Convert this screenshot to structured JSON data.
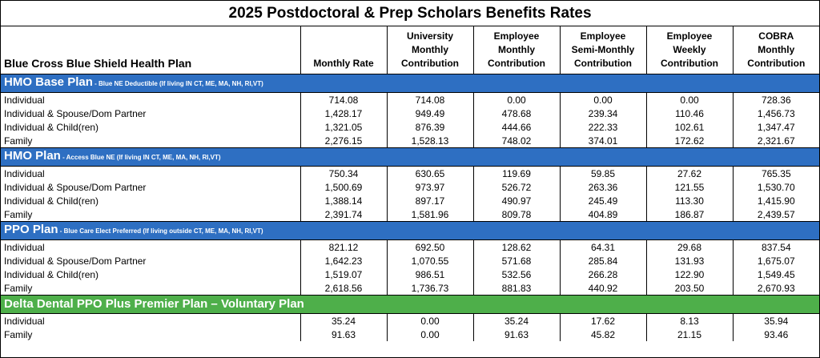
{
  "title": "2025 Postdoctoral & Prep Scholars Benefits Rates",
  "header": {
    "plan_label": "Blue Cross Blue Shield Health Plan",
    "columns": [
      [
        "",
        "",
        "Monthly Rate"
      ],
      [
        "University",
        "Monthly",
        "Contribution"
      ],
      [
        "Employee",
        "Monthly",
        "Contribution"
      ],
      [
        "Employee",
        "Semi-Monthly",
        "Contribution"
      ],
      [
        "Employee",
        "Weekly",
        "Contribution"
      ],
      [
        "COBRA",
        "Monthly",
        "Contribution"
      ]
    ]
  },
  "sections": [
    {
      "name": "HMO Base Plan",
      "note": " - Blue NE Deductible (If living IN CT, ME, MA, NH, RI,VT)",
      "color": "#2e6fc2",
      "rows": [
        {
          "label": "Individual",
          "values": [
            "714.08",
            "714.08",
            "0.00",
            "0.00",
            "0.00",
            "728.36"
          ]
        },
        {
          "label": "Individual & Spouse/Dom Partner",
          "values": [
            "1,428.17",
            "949.49",
            "478.68",
            "239.34",
            "110.46",
            "1,456.73"
          ]
        },
        {
          "label": "Individual & Child(ren)",
          "values": [
            "1,321.05",
            "876.39",
            "444.66",
            "222.33",
            "102.61",
            "1,347.47"
          ]
        },
        {
          "label": "Family",
          "values": [
            "2,276.15",
            "1,528.13",
            "748.02",
            "374.01",
            "172.62",
            "2,321.67"
          ]
        }
      ]
    },
    {
      "name": "HMO Plan",
      "note": " - Access Blue NE  (If living IN CT, ME, MA, NH, RI,VT)",
      "color": "#2e6fc2",
      "rows": [
        {
          "label": "Individual",
          "values": [
            "750.34",
            "630.65",
            "119.69",
            "59.85",
            "27.62",
            "765.35"
          ]
        },
        {
          "label": "Individual & Spouse/Dom Partner",
          "values": [
            "1,500.69",
            "973.97",
            "526.72",
            "263.36",
            "121.55",
            "1,530.70"
          ]
        },
        {
          "label": "Individual & Child(ren)",
          "values": [
            "1,388.14",
            "897.17",
            "490.97",
            "245.49",
            "113.30",
            "1,415.90"
          ]
        },
        {
          "label": "Family",
          "values": [
            "2,391.74",
            "1,581.96",
            "809.78",
            "404.89",
            "186.87",
            "2,439.57"
          ]
        }
      ]
    },
    {
      "name": "PPO Plan",
      "note": " - Blue Care Elect Preferred (If living outside CT, ME, MA, NH, RI,VT)",
      "color": "#2e6fc2",
      "rows": [
        {
          "label": "Individual",
          "values": [
            "821.12",
            "692.50",
            "128.62",
            "64.31",
            "29.68",
            "837.54"
          ]
        },
        {
          "label": "Individual & Spouse/Dom Partner",
          "values": [
            "1,642.23",
            "1,070.55",
            "571.68",
            "285.84",
            "131.93",
            "1,675.07"
          ]
        },
        {
          "label": "Individual & Child(ren)",
          "values": [
            "1,519.07",
            "986.51",
            "532.56",
            "266.28",
            "122.90",
            "1,549.45"
          ]
        },
        {
          "label": "Family",
          "values": [
            "2,618.56",
            "1,736.73",
            "881.83",
            "440.92",
            "203.50",
            "2,670.93"
          ]
        }
      ]
    },
    {
      "name": "Delta Dental PPO Plus Premier Plan – Voluntary Plan",
      "note": "",
      "color": "#4eaf4a",
      "rows": [
        {
          "label": "Individual",
          "values": [
            "35.24",
            "0.00",
            "35.24",
            "17.62",
            "8.13",
            "35.94"
          ]
        },
        {
          "label": "Family",
          "values": [
            "91.63",
            "0.00",
            "91.63",
            "45.82",
            "21.15",
            "93.46"
          ]
        }
      ]
    }
  ]
}
